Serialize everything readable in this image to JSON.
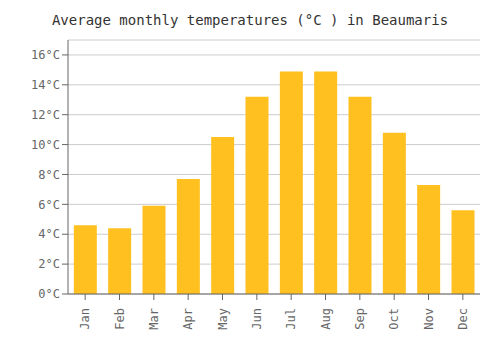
{
  "chart_data": {
    "type": "bar",
    "title": "Average monthly temperatures (°C ) in Beaumaris",
    "categories": [
      "Jan",
      "Feb",
      "Mar",
      "Apr",
      "May",
      "Jun",
      "Jul",
      "Aug",
      "Sep",
      "Oct",
      "Nov",
      "Dec"
    ],
    "values": [
      4.6,
      4.4,
      5.9,
      7.7,
      10.5,
      13.2,
      14.9,
      14.9,
      13.2,
      10.8,
      7.3,
      5.6
    ],
    "color": "#FFC020",
    "ylim": [
      0,
      17
    ],
    "yticks": [
      {
        "value": 0,
        "label": "0°C"
      },
      {
        "value": 2,
        "label": "2°C"
      },
      {
        "value": 4,
        "label": "4°C"
      },
      {
        "value": 6,
        "label": "6°C"
      },
      {
        "value": 8,
        "label": "8°C"
      },
      {
        "value": 10,
        "label": "10°C"
      },
      {
        "value": 12,
        "label": "12°C"
      },
      {
        "value": 14,
        "label": "14°C"
      },
      {
        "value": 16,
        "label": "16°C"
      }
    ],
    "grid": true
  }
}
